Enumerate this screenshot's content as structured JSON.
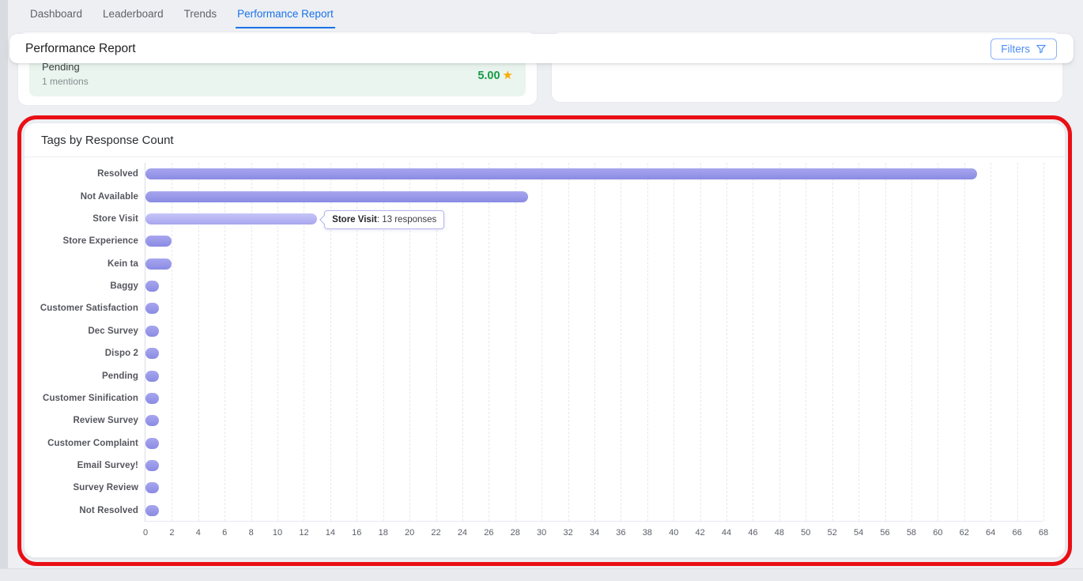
{
  "tabs": [
    {
      "label": "Dashboard",
      "active": false
    },
    {
      "label": "Leaderboard",
      "active": false
    },
    {
      "label": "Trends",
      "active": false
    },
    {
      "label": "Performance Report",
      "active": true
    }
  ],
  "header": {
    "title": "Performance Report",
    "filters_button": "Filters"
  },
  "summary_row": {
    "tag": "Pending",
    "mentions": "1 mentions",
    "score": "5.00",
    "star_icon": "★"
  },
  "chart_card": {
    "title": "Tags by Response Count"
  },
  "chart_data": {
    "type": "bar",
    "orientation": "horizontal",
    "title": "Tags by Response Count",
    "categories": [
      "Resolved",
      "Not Available",
      "Store Visit",
      "Store Experience",
      "Kein ta",
      "Baggy",
      "Customer Satisfaction",
      "Dec Survey",
      "Dispo 2",
      "Pending",
      "Customer Sinification",
      "Review Survey",
      "Customer Complaint",
      "Email Survey!",
      "Survey Review",
      "Not Resolved"
    ],
    "values": [
      63,
      29,
      13,
      2,
      2,
      1,
      1,
      1,
      1,
      1,
      1,
      1,
      1,
      1,
      1,
      1
    ],
    "xlabel": "",
    "ylabel": "",
    "xlim": [
      0,
      68
    ],
    "x_ticks": [
      0,
      2,
      4,
      6,
      8,
      10,
      12,
      14,
      16,
      18,
      20,
      22,
      24,
      26,
      28,
      30,
      32,
      34,
      36,
      38,
      40,
      42,
      44,
      46,
      48,
      50,
      52,
      54,
      56,
      58,
      60,
      62,
      64,
      66,
      68
    ],
    "grid": true,
    "legend": false,
    "highlighted_index": 2,
    "tooltip": {
      "label": "Store Visit",
      "rest": ": 13 responses"
    }
  },
  "colors": {
    "accent_blue": "#1a73e8",
    "annotation_red": "#e90f15",
    "bar_purple": "#8a8be3",
    "bar_highlight_purple": "#a8a7ee",
    "score_green": "#179c46",
    "star_orange": "#f9ab00",
    "mint_row_bg": "#e9f5ee"
  }
}
